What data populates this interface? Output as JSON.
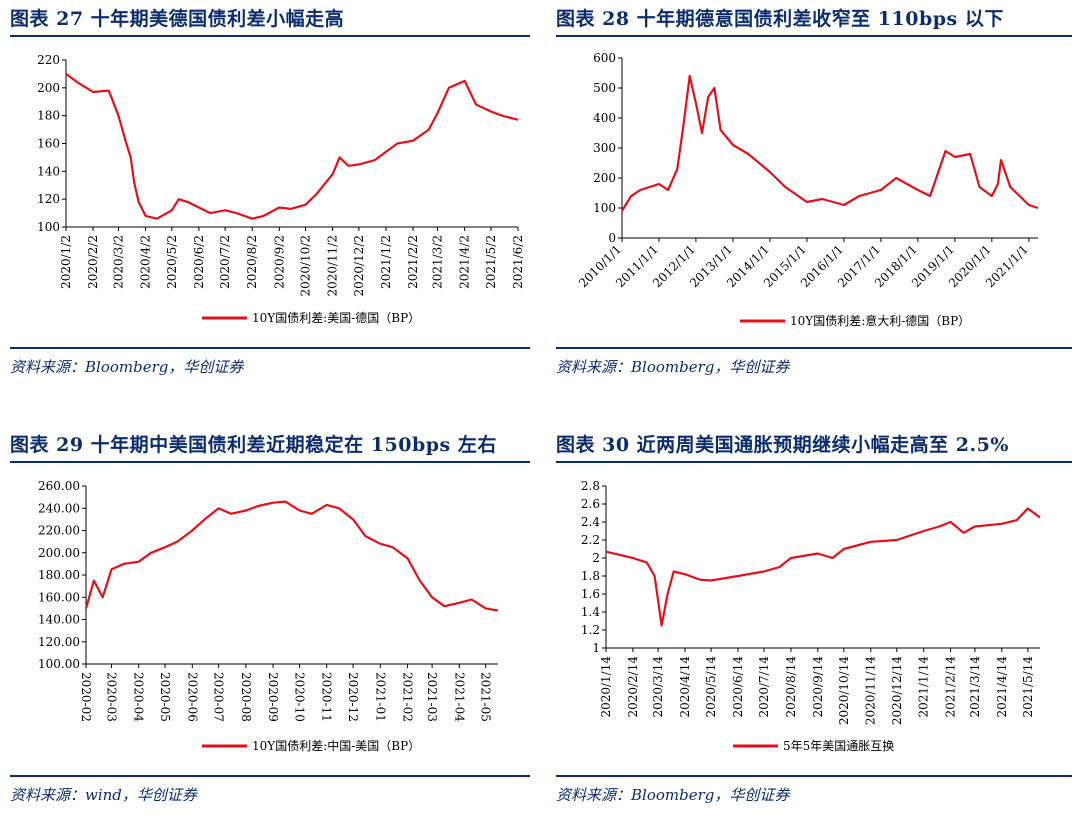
{
  "panels": [
    {
      "title": "图表 27    十年期美德国债利差小幅走高",
      "source": "资料来源：Bloomberg，华创证券",
      "chart_data": {
        "type": "line",
        "series": [
          {
            "name": "10Y国债利差:美国-德国（BP）",
            "x": [
              "2020/1/2",
              "2020/1/15",
              "2020/2/2",
              "2020/2/20",
              "2020/3/2",
              "2020/3/10",
              "2020/3/16",
              "2020/3/20",
              "2020/3/25",
              "2020/4/2",
              "2020/4/15",
              "2020/5/2",
              "2020/5/10",
              "2020/5/20",
              "2020/6/2",
              "2020/6/15",
              "2020/7/2",
              "2020/7/15",
              "2020/8/2",
              "2020/8/15",
              "2020/9/2",
              "2020/9/15",
              "2020/10/2",
              "2020/10/15",
              "2020/11/2",
              "2020/11/10",
              "2020/11/20",
              "2020/12/2",
              "2020/12/20",
              "2021/1/2",
              "2021/1/15",
              "2021/2/2",
              "2021/2/20",
              "2021/3/2",
              "2021/3/15",
              "2021/4/2",
              "2021/4/15",
              "2021/5/2",
              "2021/5/15",
              "2021/6/2"
            ],
            "values": [
              210,
              204,
              197,
              198,
              180,
              162,
              150,
              132,
              118,
              108,
              106,
              112,
              120,
              118,
              114,
              110,
              112,
              110,
              106,
              108,
              114,
              113,
              116,
              124,
              138,
              150,
              144,
              145,
              148,
              154,
              160,
              162,
              170,
              182,
              200,
              205,
              188,
              183,
              180,
              177
            ]
          }
        ],
        "x_tick_labels": [
          "2020/1/2",
          "2020/2/2",
          "2020/3/2",
          "2020/4/2",
          "2020/5/2",
          "2020/6/2",
          "2020/7/2",
          "2020/8/2",
          "2020/9/2",
          "2020/10/2",
          "2020/11/2",
          "2020/12/2",
          "2021/1/2",
          "2021/2/2",
          "2021/3/2",
          "2021/4/2",
          "2021/5/2",
          "2021/6/2"
        ],
        "y_ticks": [
          "100",
          "120",
          "140",
          "160",
          "180",
          "200",
          "220"
        ],
        "ylim": [
          100,
          220
        ],
        "legend_position": "bottom",
        "line_color": "#e3101b"
      }
    },
    {
      "title": "图表 28    十年期德意国债利差收窄至 110bps 以下",
      "source": "资料来源：Bloomberg，华创证券",
      "chart_data": {
        "type": "line",
        "series": [
          {
            "name": "10Y国债利差:意大利-德国（BP）",
            "x": [
              "2010/1/1",
              "2010/4/1",
              "2010/7/1",
              "2010/10/1",
              "2011/1/1",
              "2011/4/1",
              "2011/7/1",
              "2011/9/1",
              "2011/11/1",
              "2012/1/1",
              "2012/3/1",
              "2012/5/1",
              "2012/7/1",
              "2012/9/1",
              "2013/1/1",
              "2013/6/1",
              "2014/1/1",
              "2014/6/1",
              "2015/1/1",
              "2015/6/1",
              "2016/1/1",
              "2016/6/1",
              "2017/1/1",
              "2017/6/1",
              "2018/1/1",
              "2018/5/1",
              "2018/10/1",
              "2019/1/1",
              "2019/6/1",
              "2019/9/1",
              "2020/1/1",
              "2020/3/1",
              "2020/4/1",
              "2020/7/1",
              "2021/1/1",
              "2021/4/1"
            ],
            "values": [
              90,
              140,
              160,
              170,
              180,
              160,
              230,
              380,
              540,
              450,
              350,
              470,
              500,
              360,
              310,
              280,
              220,
              170,
              120,
              130,
              110,
              140,
              160,
              200,
              160,
              140,
              290,
              270,
              280,
              170,
              140,
              180,
              260,
              170,
              110,
              100
            ]
          }
        ],
        "x_tick_labels": [
          "2010/1/1",
          "2011/1/1",
          "2012/1/1",
          "2013/1/1",
          "2014/1/1",
          "2015/1/1",
          "2016/1/1",
          "2017/1/1",
          "2018/1/1",
          "2019/1/1",
          "2020/1/1",
          "2021/1/1"
        ],
        "y_ticks": [
          "0",
          "100",
          "200",
          "300",
          "400",
          "500",
          "600"
        ],
        "ylim": [
          0,
          600
        ],
        "legend_position": "bottom",
        "line_color": "#e3101b"
      }
    },
    {
      "title": "图表 29    十年期中美国债利差近期稳定在 150bps 左右",
      "source": "资料来源：wind，华创证券",
      "chart_data": {
        "type": "line",
        "series": [
          {
            "name": "10Y国债利差:中国-美国（BP）",
            "x": [
              "2020-02",
              "2020-02-10",
              "2020-02-20",
              "2020-03",
              "2020-03-15",
              "2020-04",
              "2020-04-15",
              "2020-05",
              "2020-05-15",
              "2020-06",
              "2020-06-15",
              "2020-07",
              "2020-07-15",
              "2020-08",
              "2020-08-15",
              "2020-09",
              "2020-09-15",
              "2020-10",
              "2020-10-15",
              "2020-11",
              "2020-11-15",
              "2020-12",
              "2020-12-15",
              "2021-01",
              "2021-01-15",
              "2021-02",
              "2021-02-15",
              "2021-03",
              "2021-03-15",
              "2021-04",
              "2021-04-15",
              "2021-05",
              "2021-05-15"
            ],
            "values": [
              150,
              175,
              160,
              185,
              190,
              192,
              200,
              205,
              210,
              220,
              230,
              240,
              235,
              238,
              242,
              245,
              246,
              238,
              235,
              243,
              240,
              230,
              215,
              208,
              205,
              195,
              175,
              160,
              152,
              155,
              158,
              150,
              148
            ]
          }
        ],
        "x_tick_labels": [
          "2020-02",
          "2020-03",
          "2020-04",
          "2020-05",
          "2020-06",
          "2020-07",
          "2020-08",
          "2020-09",
          "2020-10",
          "2020-11",
          "2020-12",
          "2021-01",
          "2021-02",
          "2021-03",
          "2021-04",
          "2021-05"
        ],
        "y_ticks": [
          "100.00",
          "120.00",
          "140.00",
          "160.00",
          "180.00",
          "200.00",
          "220.00",
          "240.00",
          "260.00"
        ],
        "ylim": [
          100,
          260
        ],
        "legend_position": "bottom",
        "line_color": "#e3101b"
      }
    },
    {
      "title": "图表 30    近两周美国通胀预期继续小幅走高至 2.5%",
      "source": "资料来源：Bloomberg，华创证券",
      "chart_data": {
        "type": "line",
        "series": [
          {
            "name": "5年5年美国通胀互换",
            "x": [
              "2020/1/14",
              "2020/2/1",
              "2020/2/14",
              "2020/3/1",
              "2020/3/10",
              "2020/3/18",
              "2020/3/25",
              "2020/4/1",
              "2020/4/14",
              "2020/5/1",
              "2020/5/14",
              "2020/6/14",
              "2020/7/14",
              "2020/8/1",
              "2020/8/14",
              "2020/9/14",
              "2020/10/1",
              "2020/10/14",
              "2020/11/14",
              "2020/12/14",
              "2021/1/14",
              "2021/2/1",
              "2021/2/14",
              "2021/3/1",
              "2021/3/14",
              "2021/4/14",
              "2021/5/1",
              "2021/5/14",
              "2021/5/28"
            ],
            "values": [
              2.07,
              2.03,
              2.0,
              1.95,
              1.8,
              1.25,
              1.6,
              1.85,
              1.82,
              1.76,
              1.75,
              1.8,
              1.85,
              1.9,
              2.0,
              2.05,
              2.0,
              2.1,
              2.18,
              2.2,
              2.3,
              2.35,
              2.4,
              2.28,
              2.35,
              2.38,
              2.42,
              2.55,
              2.45
            ]
          }
        ],
        "x_tick_labels": [
          "2020/1/14",
          "2020/2/14",
          "2020/3/14",
          "2020/4/14",
          "2020/5/14",
          "2020/6/14",
          "2020/7/14",
          "2020/8/14",
          "2020/9/14",
          "2020/10/14",
          "2020/11/14",
          "2020/12/14",
          "2021/1/14",
          "2021/2/14",
          "2021/3/14",
          "2021/4/14",
          "2021/5/14"
        ],
        "y_ticks": [
          "1",
          "1.2",
          "1.4",
          "1.6",
          "1.8",
          "2",
          "2.2",
          "2.4",
          "2.6",
          "2.8"
        ],
        "ylim": [
          1,
          2.8
        ],
        "legend_position": "bottom",
        "line_color": "#e3101b"
      }
    }
  ]
}
